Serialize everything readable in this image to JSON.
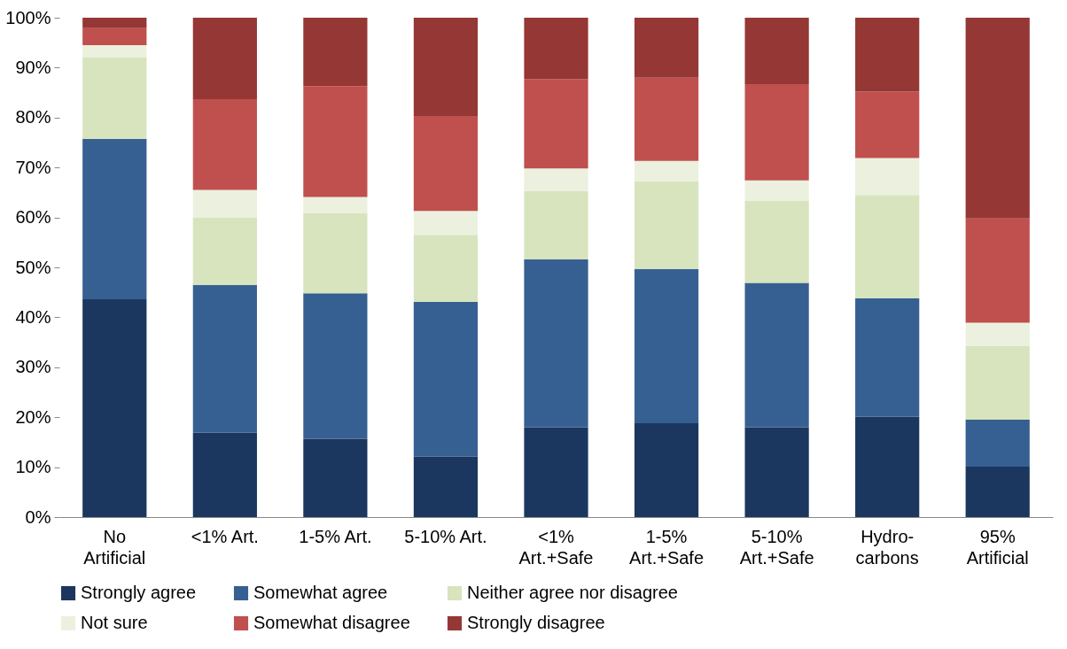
{
  "chart_data": {
    "type": "bar",
    "stacked": true,
    "categories": [
      "No Artificial",
      "<1% Art.",
      "1-5% Art.",
      "5-10% Art.",
      "<1% Art.+Safe",
      "1-5% Art.+Safe",
      "5-10% Art.+Safe",
      "Hydro-carbons",
      "95% Artificial"
    ],
    "series": [
      {
        "name": "Strongly agree",
        "color": "#1b375f",
        "values": [
          43.6,
          16.9,
          15.7,
          12.1,
          18.0,
          18.8,
          18.0,
          20.1,
          10.1
        ]
      },
      {
        "name": "Somewhat agree",
        "color": "#376092",
        "values": [
          32.1,
          29.6,
          29.1,
          31.0,
          33.6,
          30.9,
          28.9,
          23.7,
          9.4
        ]
      },
      {
        "name": "Neither agree nor disagree",
        "color": "#d7e4bd",
        "values": [
          16.3,
          13.5,
          16.1,
          13.4,
          13.7,
          17.5,
          16.5,
          20.7,
          14.7
        ]
      },
      {
        "name": "Not sure",
        "color": "#ebf1de",
        "values": [
          2.5,
          5.5,
          3.2,
          4.8,
          4.5,
          4.1,
          4.0,
          7.4,
          4.7
        ]
      },
      {
        "name": "Somewhat disagree",
        "color": "#c0504d",
        "values": [
          3.4,
          18.2,
          22.2,
          19.0,
          17.9,
          16.7,
          19.3,
          13.3,
          20.9
        ]
      },
      {
        "name": "Strongly disagree",
        "color": "#953735",
        "values": [
          2.1,
          16.3,
          13.7,
          19.7,
          12.3,
          12.0,
          13.3,
          14.8,
          40.2
        ]
      }
    ],
    "ylim": [
      0,
      100
    ],
    "yticks": [
      {
        "value": 0,
        "label": "0%"
      },
      {
        "value": 10,
        "label": "10%"
      },
      {
        "value": 20,
        "label": "20%"
      },
      {
        "value": 30,
        "label": "30%"
      },
      {
        "value": 40,
        "label": "40%"
      },
      {
        "value": 50,
        "label": "50%"
      },
      {
        "value": 60,
        "label": "60%"
      },
      {
        "value": 70,
        "label": "70%"
      },
      {
        "value": 80,
        "label": "80%"
      },
      {
        "value": 90,
        "label": "90%"
      },
      {
        "value": 100,
        "label": "100%"
      }
    ],
    "grid": false,
    "legend": "bottom"
  }
}
